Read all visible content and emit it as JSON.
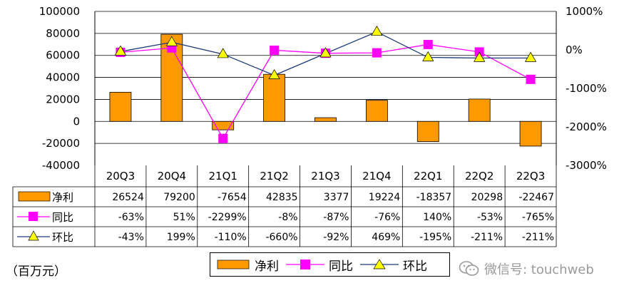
{
  "chart_data": {
    "type": "bar",
    "categories": [
      "20Q3",
      "20Q4",
      "21Q1",
      "21Q2",
      "21Q3",
      "21Q4",
      "22Q1",
      "22Q2",
      "22Q3"
    ],
    "series": [
      {
        "name": "净利",
        "type": "bar",
        "axis": "left",
        "color": "#FF9900",
        "values": [
          26524,
          79200,
          -7654,
          42835,
          3377,
          19224,
          -18357,
          20298,
          -22467
        ]
      },
      {
        "name": "同比",
        "type": "line",
        "axis": "right",
        "color": "#FF00FF",
        "line_color": "#FF00FF",
        "marker": "square",
        "values": [
          -63,
          51,
          -2299,
          -8,
          -87,
          -76,
          140,
          -53,
          -765
        ]
      },
      {
        "name": "环比",
        "type": "line",
        "axis": "right",
        "color": "#FFFF00",
        "line_color": "#1F3A7A",
        "marker": "triangle",
        "values": [
          -43,
          199,
          -110,
          -660,
          -92,
          469,
          -195,
          -211,
          -211
        ]
      }
    ],
    "table_rows": [
      {
        "label": "净利",
        "cells": [
          "26524",
          "79200",
          "-7654",
          "42835",
          "3377",
          "19224",
          "-18357",
          "20298",
          "-22467"
        ]
      },
      {
        "label": "同比",
        "cells": [
          "-63%",
          "51%",
          "-2299%",
          "-8%",
          "-87%",
          "-76%",
          "140%",
          "-53%",
          "-765%"
        ]
      },
      {
        "label": "环比",
        "cells": [
          "-43%",
          "199%",
          "-110%",
          "-660%",
          "-92%",
          "469%",
          "-195%",
          "-211%",
          "-211%"
        ]
      }
    ],
    "y_left": {
      "ylim": [
        -40000,
        100000
      ],
      "ticks": [
        100000,
        80000,
        60000,
        40000,
        20000,
        0,
        -20000,
        -40000
      ]
    },
    "y_right": {
      "ylim": [
        -3000,
        1000
      ],
      "ticks": [
        "1000%",
        "0%",
        "-1000%",
        "-2000%",
        "-3000%"
      ],
      "tick_values": [
        1000,
        0,
        -1000,
        -2000,
        -3000
      ]
    },
    "grid": true,
    "legend_position": "bottom-center",
    "unit_note": "（百万元）"
  },
  "legend": {
    "items": [
      {
        "label": "净利",
        "kind": "bar",
        "color": "#FF9900"
      },
      {
        "label": "同比",
        "kind": "square",
        "color": "#FF00FF"
      },
      {
        "label": "环比",
        "kind": "triangle",
        "color": "#FFFF00"
      }
    ]
  },
  "watermark": {
    "text": "微信号: touchweb",
    "icon": "wechat-icon"
  }
}
